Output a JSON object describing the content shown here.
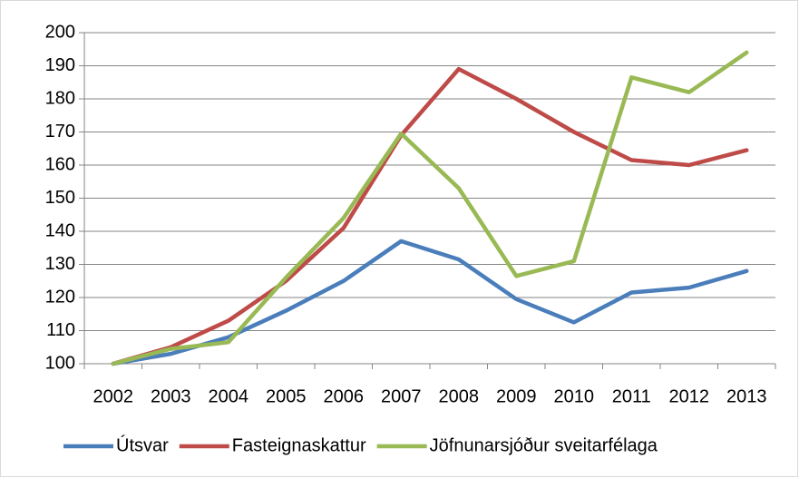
{
  "chart_data": {
    "type": "line",
    "categories": [
      "2002",
      "2003",
      "2004",
      "2005",
      "2006",
      "2007",
      "2008",
      "2009",
      "2010",
      "2011",
      "2012",
      "2013"
    ],
    "series": [
      {
        "name": "Útsvar",
        "color": "#4a7ebb",
        "values": [
          100,
          103,
          108,
          116,
          125,
          137,
          131.5,
          119.5,
          112.5,
          121.5,
          123,
          128
        ]
      },
      {
        "name": "Fasteignaskattur",
        "color": "#be4b48",
        "values": [
          100,
          105,
          113,
          125,
          141,
          169,
          189,
          180,
          170,
          161.5,
          160,
          164.5
        ]
      },
      {
        "name": "Jöfnunarsjóður sveitarfélaga",
        "color": "#98b954",
        "values": [
          100,
          104.5,
          106.5,
          126,
          144,
          169.5,
          153,
          126.5,
          131,
          186.5,
          182,
          194
        ]
      }
    ],
    "ylim": [
      100,
      200
    ],
    "yticks": [
      100,
      110,
      120,
      130,
      140,
      150,
      160,
      170,
      180,
      190,
      200
    ],
    "grid": true,
    "legend": "bottom"
  }
}
